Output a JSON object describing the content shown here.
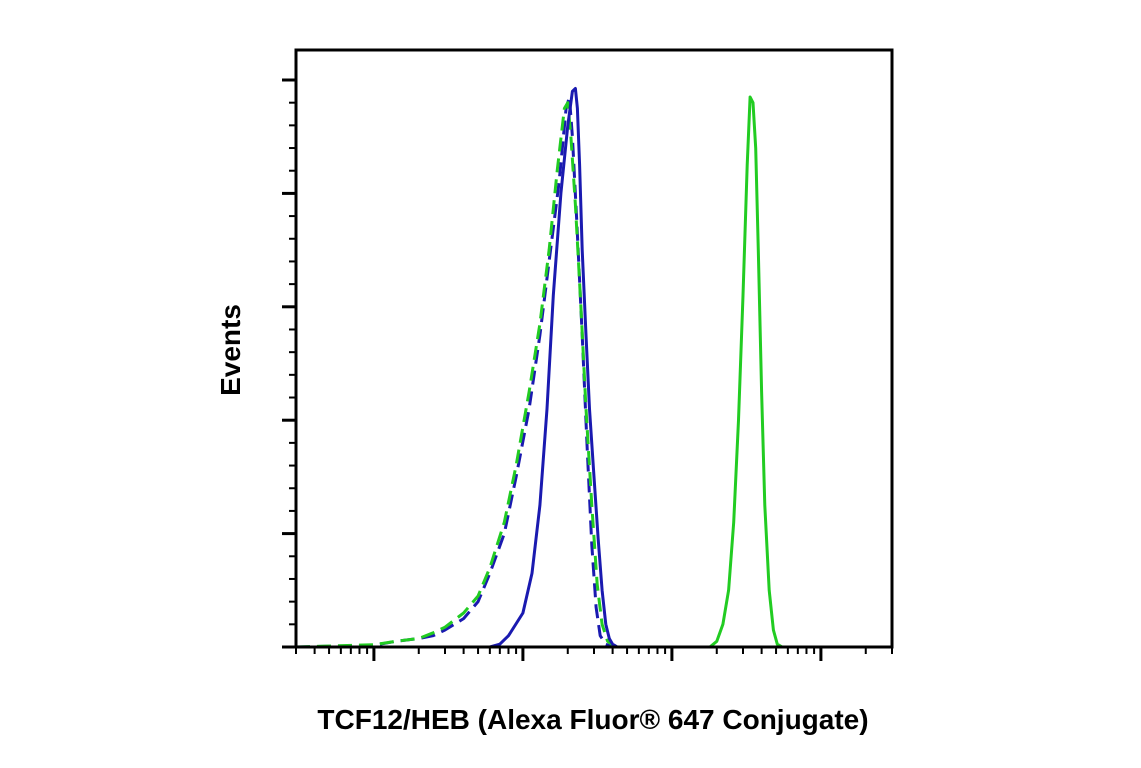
{
  "chart_data": {
    "type": "line",
    "xlabel": "TCF12/HEB (Alexa Fluor® 647 Conjugate)",
    "ylabel": "Events",
    "x_scale": "log",
    "xlim": [
      3,
      30000
    ],
    "ylim": [
      0,
      1
    ],
    "x_major_ticks": [
      10,
      100,
      1000,
      10000
    ],
    "y_major_ticks": [
      0,
      0.2,
      0.4,
      0.6,
      0.8,
      1.0
    ],
    "tick_labels_shown": false,
    "grid": false,
    "series": [
      {
        "style": "solid",
        "color": "#1a1ab0",
        "x": [
          3,
          60,
          70,
          80,
          100,
          115,
          130,
          145,
          160,
          180,
          200,
          215,
          225,
          232,
          240,
          250,
          265,
          280,
          300,
          320,
          340,
          360,
          380,
          400,
          430,
          30000
        ],
        "y": [
          0,
          0,
          0.005,
          0.02,
          0.06,
          0.13,
          0.25,
          0.42,
          0.62,
          0.8,
          0.92,
          0.98,
          0.985,
          0.95,
          0.85,
          0.7,
          0.55,
          0.42,
          0.3,
          0.19,
          0.1,
          0.04,
          0.015,
          0.005,
          0,
          0
        ]
      },
      {
        "style": "solid",
        "color": "#22cc22",
        "x": [
          3,
          1800,
          2000,
          2200,
          2400,
          2600,
          2800,
          3000,
          3200,
          3350,
          3500,
          3650,
          3800,
          4000,
          4200,
          4500,
          4800,
          5100,
          5500,
          30000
        ],
        "y": [
          0,
          0,
          0.01,
          0.04,
          0.1,
          0.22,
          0.4,
          0.62,
          0.85,
          0.97,
          0.96,
          0.88,
          0.7,
          0.45,
          0.25,
          0.1,
          0.03,
          0.005,
          0,
          0
        ]
      },
      {
        "style": "dashed",
        "color": "#1a1ab0",
        "x": [
          3,
          10,
          14,
          20,
          25,
          30,
          40,
          50,
          60,
          75,
          90,
          110,
          130,
          150,
          175,
          195,
          205,
          215,
          230,
          250,
          270,
          290,
          310,
          330,
          360,
          400,
          30000
        ],
        "y": [
          0,
          0.003,
          0.01,
          0.015,
          0.02,
          0.03,
          0.05,
          0.08,
          0.13,
          0.2,
          0.3,
          0.42,
          0.55,
          0.68,
          0.82,
          0.95,
          0.97,
          0.9,
          0.75,
          0.55,
          0.35,
          0.18,
          0.07,
          0.02,
          0.005,
          0,
          0
        ]
      },
      {
        "style": "dashed",
        "color": "#22cc22",
        "x": [
          3,
          10,
          14,
          20,
          25,
          30,
          40,
          50,
          60,
          75,
          90,
          110,
          130,
          150,
          170,
          190,
          200,
          210,
          225,
          245,
          265,
          290,
          315,
          340,
          370,
          420,
          30000
        ],
        "y": [
          0,
          0.004,
          0.01,
          0.015,
          0.025,
          0.035,
          0.06,
          0.09,
          0.14,
          0.22,
          0.32,
          0.45,
          0.57,
          0.7,
          0.84,
          0.95,
          0.96,
          0.9,
          0.78,
          0.6,
          0.42,
          0.25,
          0.11,
          0.04,
          0.01,
          0,
          0
        ]
      }
    ]
  }
}
